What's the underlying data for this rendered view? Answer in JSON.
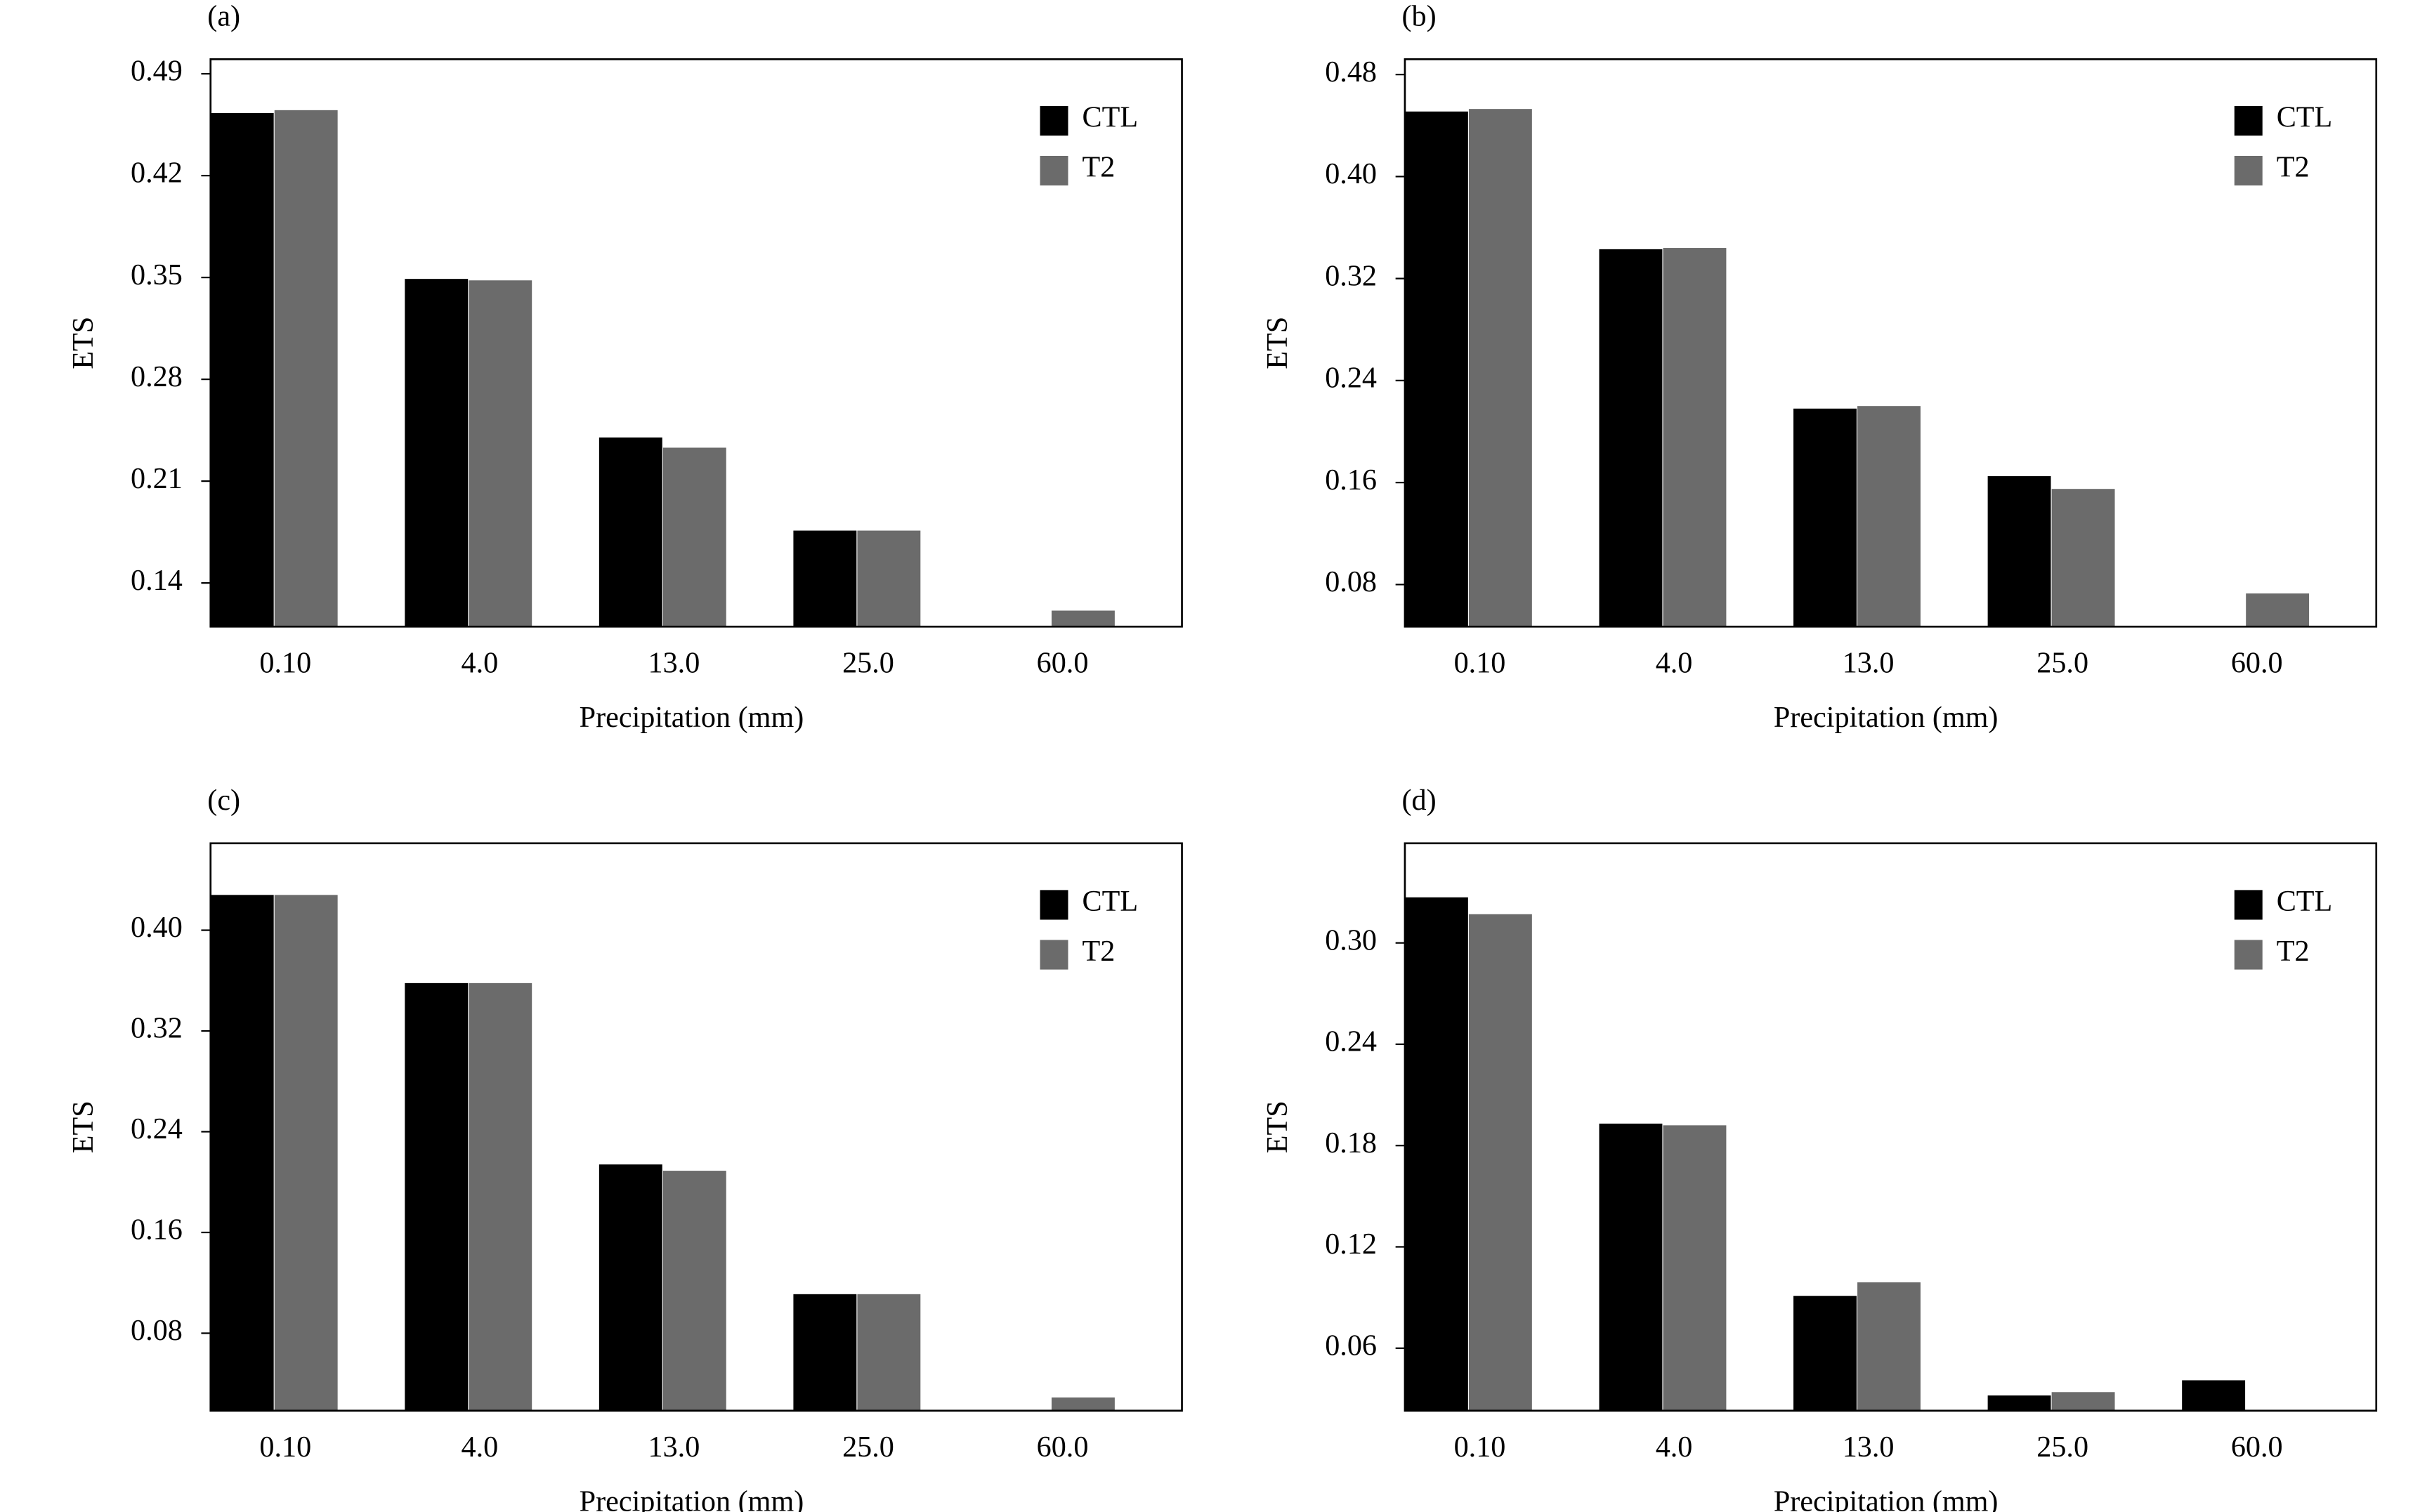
{
  "chart_data": [
    {
      "type": "bar",
      "panel_label": "(a)",
      "xlabel": "Precipitation (mm)",
      "ylabel": "ETS",
      "categories": [
        "0.10",
        "4.0",
        "13.0",
        "25.0",
        "60.0"
      ],
      "series": [
        {
          "name": "CTL",
          "color": "#000000",
          "values": [
            0.463,
            0.349,
            0.24,
            0.176,
            null
          ]
        },
        {
          "name": "T2",
          "color": "#6b6b6b",
          "values": [
            0.465,
            0.348,
            0.233,
            0.176,
            0.121
          ]
        }
      ],
      "ylim": [
        0.11,
        0.5
      ],
      "yticks": [
        0.14,
        0.21,
        0.28,
        0.35,
        0.42,
        0.49
      ],
      "legend": "upper right"
    },
    {
      "type": "bar",
      "panel_label": "(b)",
      "xlabel": "Precipitation (mm)",
      "ylabel": "ETS",
      "categories": [
        "0.10",
        "4.0",
        "13.0",
        "25.0",
        "60.0"
      ],
      "series": [
        {
          "name": "CTL",
          "color": "#000000",
          "values": [
            0.451,
            0.343,
            0.218,
            0.165,
            null
          ]
        },
        {
          "name": "T2",
          "color": "#6b6b6b",
          "values": [
            0.453,
            0.344,
            0.22,
            0.155,
            0.073
          ]
        }
      ],
      "ylim": [
        0.047,
        0.492
      ],
      "yticks": [
        0.08,
        0.16,
        0.24,
        0.32,
        {
          "value": 0.4,
          "label": "0.40"
        },
        0.48
      ],
      "legend": "upper right"
    },
    {
      "type": "bar",
      "panel_label": "(c)",
      "xlabel": "Precipitation (mm)",
      "ylabel": "ETS",
      "categories": [
        "0.10",
        "4.0",
        "13.0",
        "25.0",
        "60.0"
      ],
      "series": [
        {
          "name": "CTL",
          "color": "#000000",
          "values": [
            0.428,
            0.358,
            0.214,
            0.111,
            null
          ]
        },
        {
          "name": "T2",
          "color": "#6b6b6b",
          "values": [
            0.428,
            0.358,
            0.209,
            0.111,
            0.029
          ]
        }
      ],
      "ylim": [
        0.0185,
        0.469
      ],
      "yticks": [
        0.08,
        0.16,
        0.24,
        0.32,
        {
          "value": 0.4,
          "label": "0.40"
        }
      ],
      "legend": "upper right"
    },
    {
      "type": "bar",
      "panel_label": "(d)",
      "xlabel": "Precipitation (mm)",
      "ylabel": "ETS",
      "categories": [
        "0.10",
        "4.0",
        "13.0",
        "25.0",
        "60.0"
      ],
      "series": [
        {
          "name": "CTL",
          "color": "#000000",
          "values": [
            0.327,
            0.193,
            0.091,
            0.032,
            0.041
          ]
        },
        {
          "name": "T2",
          "color": "#6b6b6b",
          "values": [
            0.317,
            0.192,
            0.099,
            0.034,
            null
          ]
        }
      ],
      "ylim": [
        0.023,
        0.359
      ],
      "yticks": [
        0.06,
        0.12,
        0.18,
        0.24,
        {
          "value": 0.3,
          "label": "0.30"
        }
      ],
      "legend": "upper right"
    }
  ]
}
